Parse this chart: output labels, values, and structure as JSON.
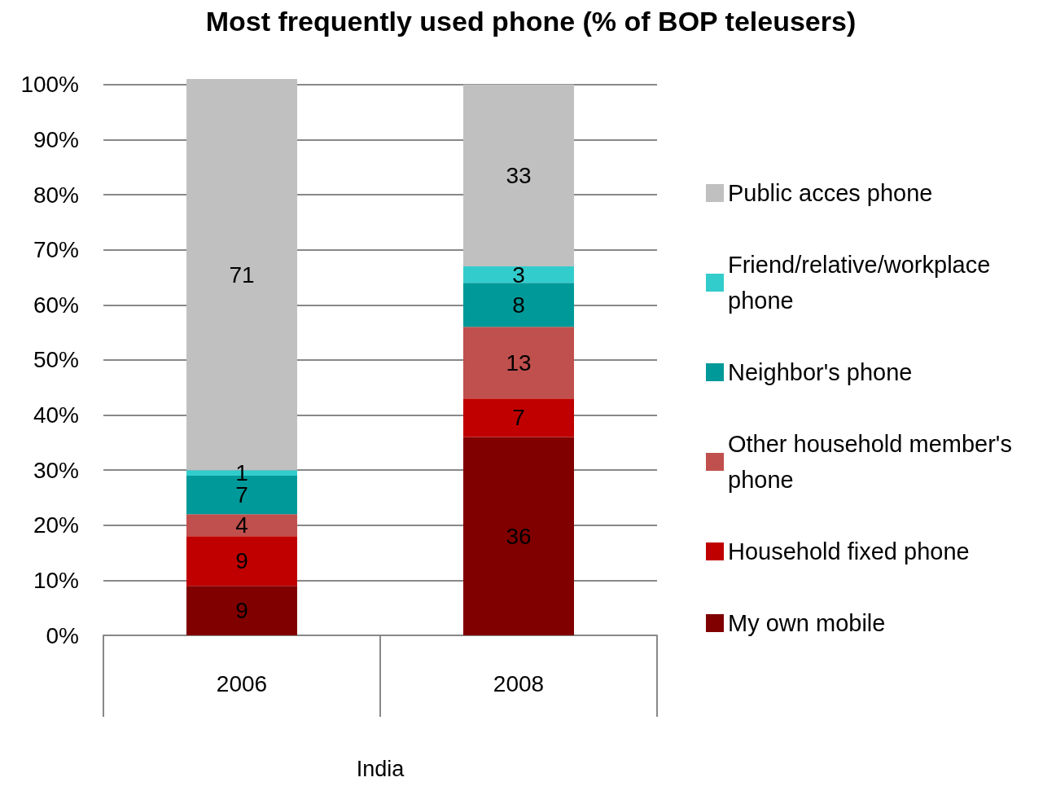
{
  "chart_data": {
    "type": "bar",
    "title": "Most frequently used phone (% of BOP teleusers)",
    "xlabel": "India",
    "categories": [
      "2006",
      "2008"
    ],
    "stacked": true,
    "data_labels": true,
    "grid": "y",
    "legend": "right",
    "ylim": [
      0,
      101
    ],
    "yticks": [
      {
        "value": 0,
        "label": "0%"
      },
      {
        "value": 10,
        "label": "10%"
      },
      {
        "value": 20,
        "label": "20%"
      },
      {
        "value": 30,
        "label": "30%"
      },
      {
        "value": 40,
        "label": "40%"
      },
      {
        "value": 50,
        "label": "50%"
      },
      {
        "value": 60,
        "label": "60%"
      },
      {
        "value": 70,
        "label": "70%"
      },
      {
        "value": 80,
        "label": "80%"
      },
      {
        "value": 90,
        "label": "90%"
      },
      {
        "value": 100,
        "label": "100%"
      }
    ],
    "series": [
      {
        "name": "My own mobile",
        "color": "#800000",
        "values": [
          9,
          36
        ]
      },
      {
        "name": "Household fixed phone",
        "color": "#c00000",
        "values": [
          9,
          7
        ]
      },
      {
        "name": "Other household member's phone",
        "color": "#c0504d",
        "values": [
          4,
          13
        ]
      },
      {
        "name": "Neighbor's phone",
        "color": "#009999",
        "values": [
          7,
          8
        ]
      },
      {
        "name": "Friend/relative/workplace phone",
        "color": "#33cccc",
        "values": [
          1,
          3
        ]
      },
      {
        "name": "Public acces phone",
        "color": "#c0c0c0",
        "values": [
          71,
          33
        ]
      }
    ]
  }
}
